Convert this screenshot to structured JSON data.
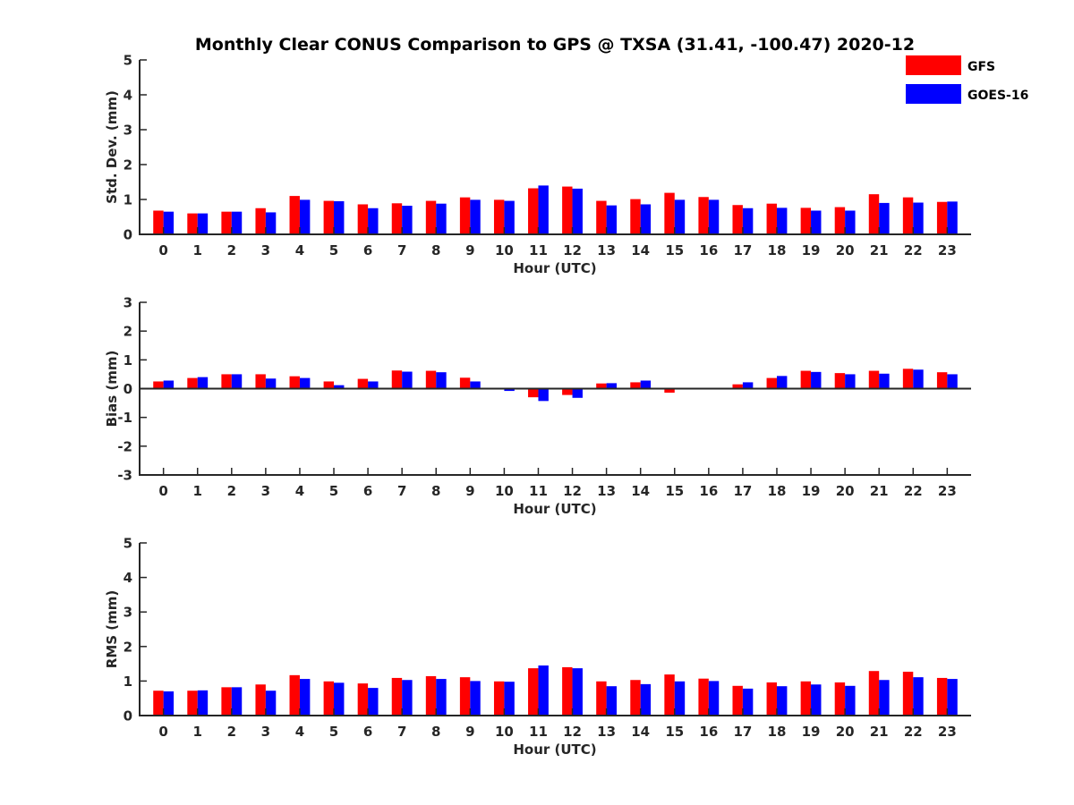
{
  "chart_data": [
    {
      "type": "bar",
      "title": "Monthly Clear CONUS Comparison to GPS @ TXSA (31.41, -100.47) 2020-12",
      "xlabel": "Hour (UTC)",
      "ylabel": "Std. Dev. (mm)",
      "ylim": [
        0,
        5
      ],
      "yticks": [
        "0",
        "1",
        "2",
        "3",
        "4",
        "5"
      ],
      "categories": [
        "0",
        "1",
        "2",
        "3",
        "4",
        "5",
        "6",
        "7",
        "8",
        "9",
        "10",
        "11",
        "12",
        "13",
        "14",
        "15",
        "16",
        "17",
        "18",
        "19",
        "20",
        "21",
        "22",
        "23"
      ],
      "series": [
        {
          "name": "GFS",
          "values": [
            0.68,
            0.6,
            0.65,
            0.75,
            1.1,
            0.96,
            0.86,
            0.89,
            0.96,
            1.06,
            0.99,
            1.32,
            1.37,
            0.96,
            1.01,
            1.19,
            1.07,
            0.84,
            0.88,
            0.76,
            0.78,
            1.15,
            1.06,
            0.93
          ]
        },
        {
          "name": "GOES-16",
          "values": [
            0.65,
            0.6,
            0.65,
            0.63,
            0.99,
            0.95,
            0.75,
            0.82,
            0.88,
            0.99,
            0.96,
            1.4,
            1.31,
            0.83,
            0.86,
            0.99,
            0.99,
            0.75,
            0.76,
            0.68,
            0.68,
            0.9,
            0.91,
            0.94
          ]
        }
      ]
    },
    {
      "type": "bar",
      "xlabel": "Hour (UTC)",
      "ylabel": "Bias (mm)",
      "ylim": [
        -3,
        3
      ],
      "yticks": [
        "-3",
        "-2",
        "-1",
        "0",
        "1",
        "2",
        "3"
      ],
      "categories": [
        "0",
        "1",
        "2",
        "3",
        "4",
        "5",
        "6",
        "7",
        "8",
        "9",
        "10",
        "11",
        "12",
        "13",
        "14",
        "15",
        "16",
        "17",
        "18",
        "19",
        "20",
        "21",
        "22",
        "23"
      ],
      "series": [
        {
          "name": "GFS",
          "values": [
            0.25,
            0.37,
            0.5,
            0.5,
            0.43,
            0.25,
            0.34,
            0.63,
            0.62,
            0.38,
            -0.02,
            -0.3,
            -0.22,
            0.18,
            0.22,
            -0.14,
            0.0,
            0.15,
            0.37,
            0.62,
            0.54,
            0.62,
            0.69,
            0.57
          ]
        },
        {
          "name": "GOES-16",
          "values": [
            0.28,
            0.4,
            0.5,
            0.35,
            0.37,
            0.12,
            0.25,
            0.59,
            0.57,
            0.25,
            -0.08,
            -0.43,
            -0.32,
            0.19,
            0.28,
            -0.03,
            0.0,
            0.22,
            0.44,
            0.58,
            0.5,
            0.52,
            0.66,
            0.5
          ]
        }
      ]
    },
    {
      "type": "bar",
      "xlabel": "Hour (UTC)",
      "ylabel": "RMS (mm)",
      "ylim": [
        0,
        5
      ],
      "yticks": [
        "0",
        "1",
        "2",
        "3",
        "4",
        "5"
      ],
      "categories": [
        "0",
        "1",
        "2",
        "3",
        "4",
        "5",
        "6",
        "7",
        "8",
        "9",
        "10",
        "11",
        "12",
        "13",
        "14",
        "15",
        "16",
        "17",
        "18",
        "19",
        "20",
        "21",
        "22",
        "23"
      ],
      "series": [
        {
          "name": "GFS",
          "values": [
            0.72,
            0.72,
            0.82,
            0.9,
            1.17,
            0.99,
            0.93,
            1.09,
            1.14,
            1.11,
            0.99,
            1.37,
            1.4,
            0.99,
            1.03,
            1.19,
            1.07,
            0.86,
            0.96,
            0.99,
            0.96,
            1.29,
            1.27,
            1.09
          ]
        },
        {
          "name": "GOES-16",
          "values": [
            0.7,
            0.73,
            0.82,
            0.72,
            1.06,
            0.95,
            0.8,
            1.03,
            1.06,
            1.0,
            0.98,
            1.45,
            1.37,
            0.85,
            0.91,
            0.99,
            1.0,
            0.78,
            0.85,
            0.9,
            0.86,
            1.03,
            1.11,
            1.06
          ]
        }
      ]
    }
  ],
  "legend": [
    {
      "label": "GFS",
      "color": "#ff0000"
    },
    {
      "label": "GOES-16",
      "color": "#0000ff"
    }
  ],
  "colors": {
    "series_1": "#ff0000",
    "series_2": "#0000ff",
    "axis": "#262626"
  }
}
